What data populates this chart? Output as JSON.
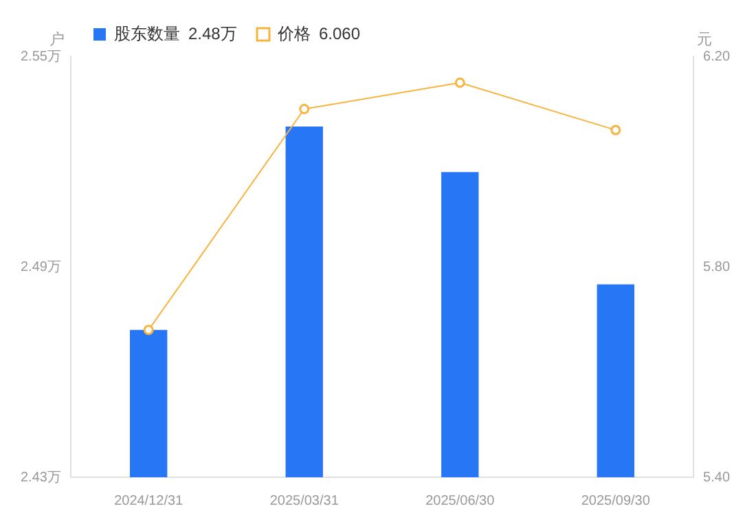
{
  "chart_data": {
    "type": "bar",
    "categories": [
      "2024/12/31",
      "2025/03/31",
      "2025/06/30",
      "2025/09/30"
    ],
    "series": [
      {
        "name": "股东数量",
        "color": "#2676f6",
        "values": [
          2.472,
          2.53,
          2.517,
          2.485
        ]
      },
      {
        "name": "价格",
        "type": "line",
        "axis": "y2",
        "color": "#f7b340",
        "values": [
          5.68,
          6.1,
          6.15,
          6.06
        ]
      }
    ],
    "ylabel": "户",
    "y2label": "元",
    "ylim": [
      2.43,
      2.55
    ],
    "yticks": [
      {
        "value": 2.43,
        "label": "2.43万"
      },
      {
        "value": 2.49,
        "label": "2.49万"
      },
      {
        "value": 2.55,
        "label": "2.55万"
      }
    ],
    "y2lim": [
      5.4,
      6.2
    ],
    "y2ticks": [
      {
        "value": 5.4,
        "label": "5.40"
      },
      {
        "value": 5.8,
        "label": "5.80"
      },
      {
        "value": 6.2,
        "label": "6.20"
      }
    ],
    "annotations": [
      "2.48万",
      "6.060"
    ],
    "legend": "top left",
    "marker": "circle",
    "line_style": "solid",
    "grid": false
  }
}
